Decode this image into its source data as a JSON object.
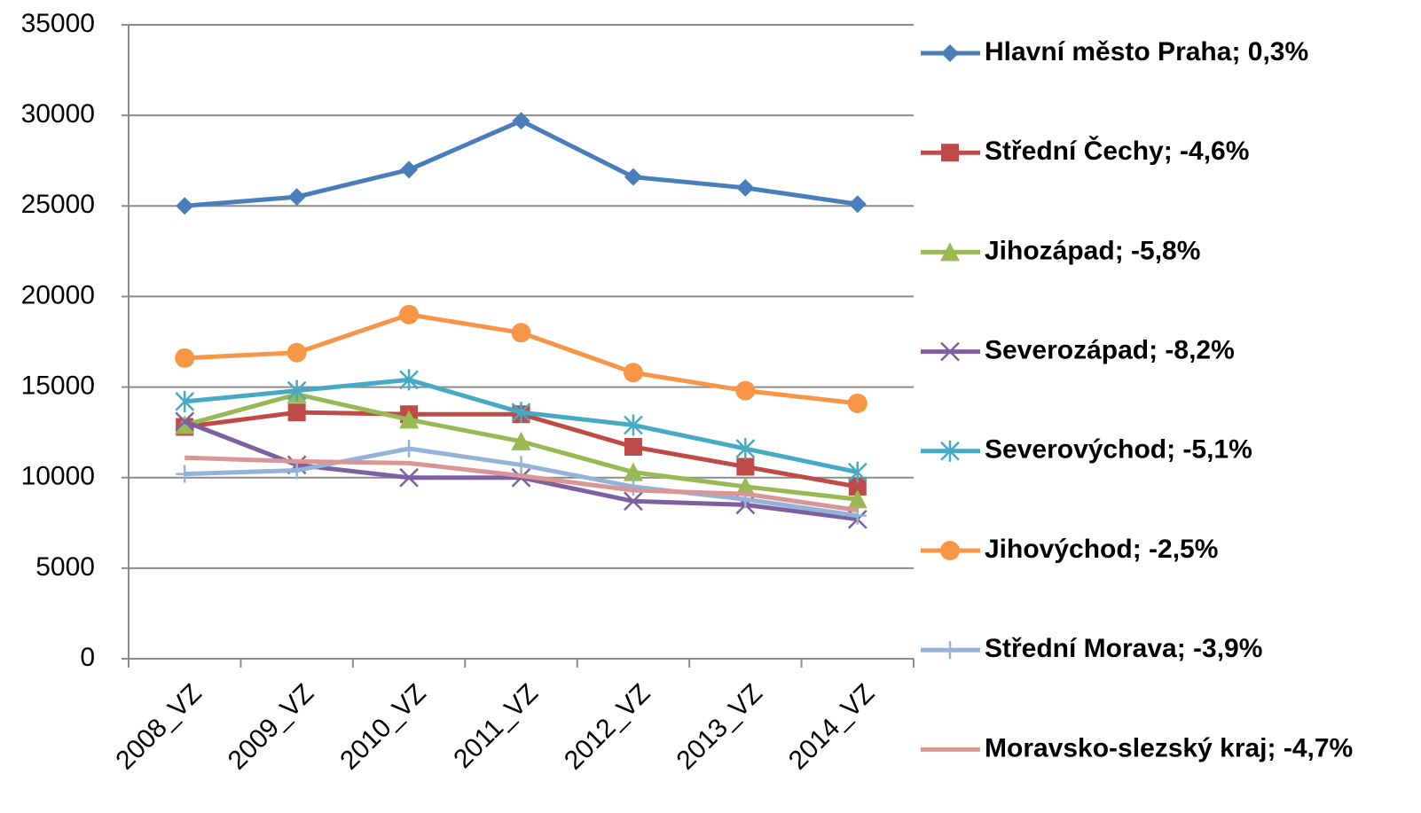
{
  "chart_data": {
    "type": "line",
    "categories": [
      "2008_VZ",
      "2009_VZ",
      "2010_VZ",
      "2011_VZ",
      "2012_VZ",
      "2013_VZ",
      "2014_VZ"
    ],
    "series": [
      {
        "name": "Hlavní město Praha; 0,3%",
        "color": "#4a7ebb",
        "marker": "diamond",
        "values": [
          25000,
          25500,
          27000,
          29700,
          26600,
          26000,
          25100
        ]
      },
      {
        "name": "Střední Čechy; -4,6%",
        "color": "#be4b48",
        "marker": "square",
        "values": [
          12800,
          13600,
          13500,
          13500,
          11700,
          10600,
          9500
        ]
      },
      {
        "name": "Jihozápad; -5,8%",
        "color": "#98b954",
        "marker": "triangle",
        "values": [
          12900,
          14600,
          13200,
          12000,
          10300,
          9500,
          8800
        ]
      },
      {
        "name": "Severozápad; -8,2%",
        "color": "#7d60a0",
        "marker": "x",
        "values": [
          13100,
          10700,
          10000,
          10000,
          8700,
          8500,
          7700
        ]
      },
      {
        "name": "Severovýchod; -5,1%",
        "color": "#46aac5",
        "marker": "star",
        "values": [
          14200,
          14800,
          15400,
          13600,
          12900,
          11600,
          10300
        ]
      },
      {
        "name": "Jihovýchod; -2,5%",
        "color": "#f79646",
        "marker": "circle",
        "values": [
          16600,
          16900,
          19000,
          18000,
          15800,
          14800,
          14100
        ]
      },
      {
        "name": "Střední Morava; -3,9%",
        "color": "#95b3d7",
        "marker": "plus",
        "values": [
          10200,
          10400,
          11600,
          10700,
          9500,
          8800,
          7900
        ]
      },
      {
        "name": "Moravsko-slezský kraj; -4,7%",
        "color": "#d99694",
        "marker": "none",
        "values": [
          11100,
          10900,
          10800,
          10100,
          9300,
          9100,
          8200
        ]
      }
    ],
    "ylim": [
      0,
      35000
    ],
    "yticks": [
      0,
      5000,
      10000,
      15000,
      20000,
      25000,
      30000,
      35000
    ],
    "grid": true,
    "legend": "right"
  }
}
